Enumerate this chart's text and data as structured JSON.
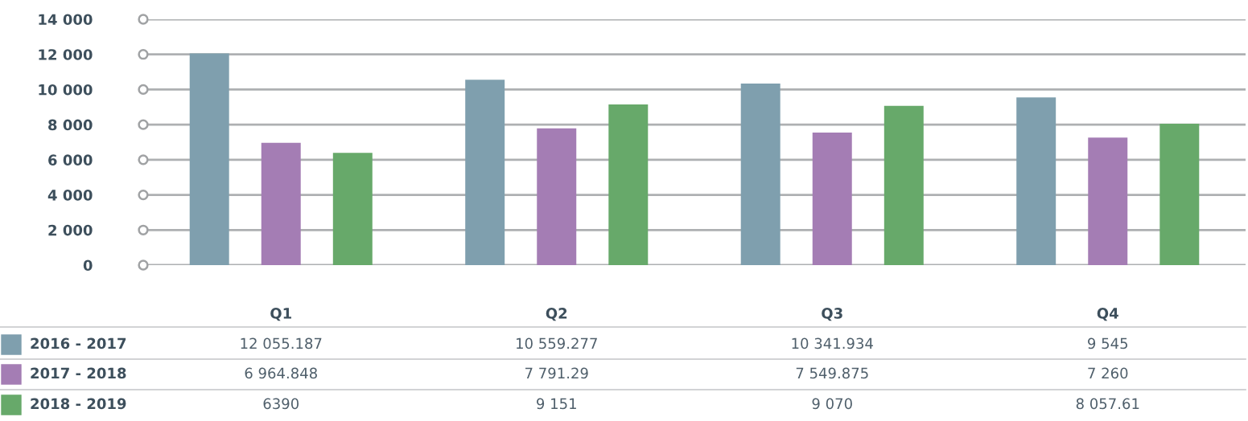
{
  "chart_data": {
    "type": "bar",
    "categories": [
      "Q1",
      "Q2",
      "Q3",
      "Q4"
    ],
    "series": [
      {
        "name": "2016 - 2017",
        "color": "#7f9fae",
        "values": [
          12055.187,
          10559.277,
          10341.934,
          9545
        ],
        "value_labels": [
          "12 055.187",
          "10 559.277",
          "10 341.934",
          "9 545"
        ]
      },
      {
        "name": "2017 - 2018",
        "color": "#a47db4",
        "values": [
          6964.848,
          7791.29,
          7549.875,
          7260
        ],
        "value_labels": [
          "6 964.848",
          "7 791.29",
          "7 549.875",
          "7 260"
        ]
      },
      {
        "name": "2018 - 2019",
        "color": "#67a96a",
        "values": [
          6390,
          9151,
          9070,
          8057.61
        ],
        "value_labels": [
          "6390",
          "9 151",
          "9 070",
          "8 057.61"
        ]
      }
    ],
    "ylim": [
      0,
      14000
    ],
    "yticks": [
      0,
      {
        "value": 2000,
        "label": "2 000"
      },
      {
        "value": 4000,
        "label": "4 000"
      },
      {
        "value": 6000,
        "label": "6 000"
      },
      {
        "value": 8000,
        "label": "8 000"
      },
      {
        "value": 10000,
        "label": "10 000"
      },
      {
        "value": 12000,
        "label": "12 000"
      },
      {
        "value": 14000,
        "label": "14 000"
      }
    ],
    "grid": "y",
    "legend": "bottom"
  }
}
